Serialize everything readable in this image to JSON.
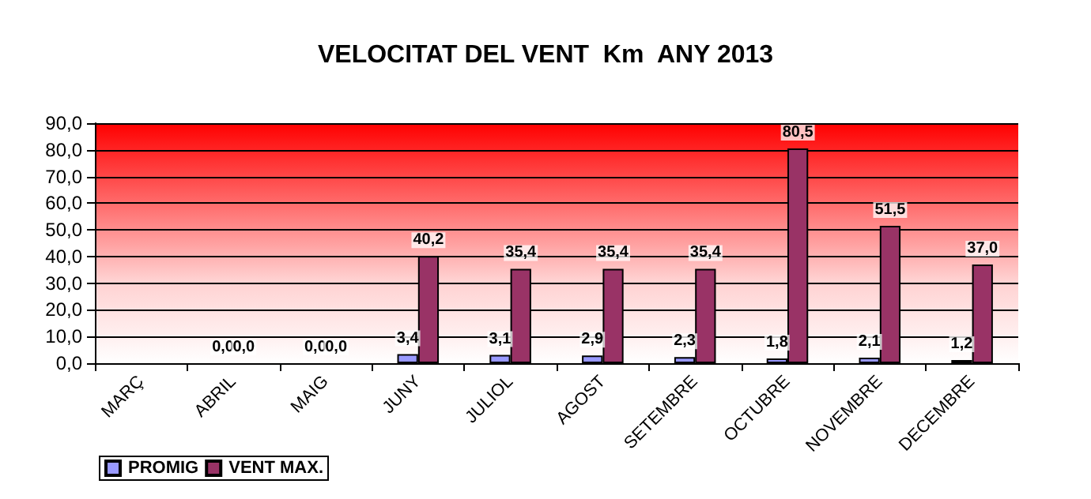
{
  "chart_data": {
    "type": "bar",
    "title": "VELOCITAT DEL VENT  Km  ANY 2013",
    "categories": [
      "MARÇ",
      "ABRIL",
      "MAIG",
      "JUNY",
      "JULIOL",
      "AGOST",
      "SETEMBRE",
      "OCTUBRE",
      "NOVEMBRE",
      "DECEMBRE"
    ],
    "series": [
      {
        "name": "PROMIG",
        "color": "#9999ff",
        "values": [
          null,
          0,
          0,
          3.4,
          3.1,
          2.9,
          2.3,
          1.8,
          2.1,
          1.2
        ],
        "value_labels": [
          null,
          "0,0",
          "0,0",
          "3,4",
          "3,1",
          "2,9",
          "2,3",
          "1,8",
          "2,1",
          "1,2"
        ]
      },
      {
        "name": "VENT MAX.",
        "color": "#993366",
        "values": [
          null,
          0,
          0,
          40.2,
          35.4,
          35.4,
          35.4,
          80.5,
          51.5,
          37.0
        ],
        "value_labels": [
          null,
          "0,0",
          "0,0",
          "40,2",
          "35,4",
          "35,4",
          "35,4",
          "80,5",
          "51,5",
          "37,0"
        ]
      }
    ],
    "ylim": [
      0,
      90
    ],
    "yticks": [
      {
        "value": 0,
        "label": "0,0"
      },
      {
        "value": 10,
        "label": "10,0"
      },
      {
        "value": 20,
        "label": "20,0"
      },
      {
        "value": 30,
        "label": "30,0"
      },
      {
        "value": 40,
        "label": "40,0"
      },
      {
        "value": 50,
        "label": "50,0"
      },
      {
        "value": 60,
        "label": "60,0"
      },
      {
        "value": 70,
        "label": "70,0"
      },
      {
        "value": 80,
        "label": "80,0"
      },
      {
        "value": 90,
        "label": "90,0"
      }
    ],
    "grid": "y",
    "legend": "bottom left"
  }
}
